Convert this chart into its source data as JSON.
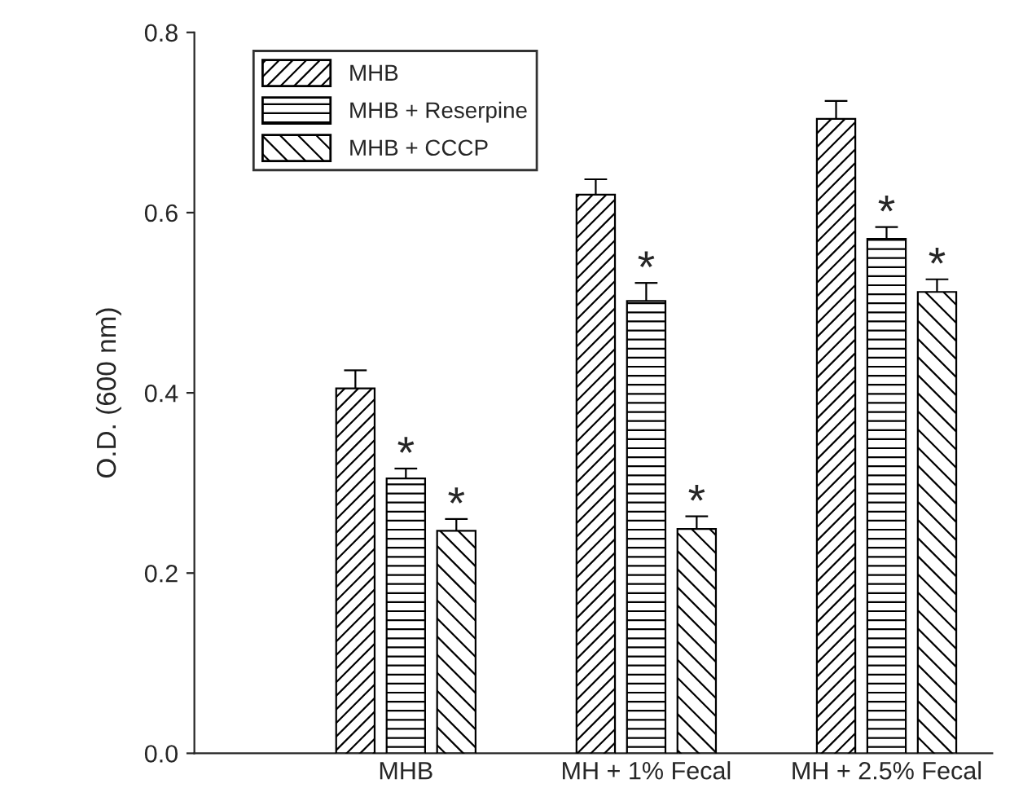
{
  "chart_data": {
    "type": "bar",
    "ylabel": "O.D. (600 nm)",
    "categories": [
      "MHB",
      "MH + 1% Fecal",
      "MH + 2.5% Fecal"
    ],
    "series": [
      {
        "name": "MHB",
        "color": "#000000",
        "values": [
          0.405,
          0.62,
          0.704
        ],
        "errors": [
          0.02,
          0.017,
          0.02
        ]
      },
      {
        "name": "MHB + Reserpine",
        "color": "#000000",
        "values": [
          0.305,
          0.502,
          0.571
        ],
        "errors": [
          0.011,
          0.02,
          0.013
        ]
      },
      {
        "name": "MHB + CCCP",
        "color": "#000000",
        "values": [
          0.247,
          0.249,
          0.512
        ],
        "errors": [
          0.013,
          0.014,
          0.014
        ]
      }
    ],
    "annotations": [
      {
        "text": "*",
        "x": "MHB",
        "y": 0.305
      },
      "*",
      {
        "text": "*",
        "x": "MH + 1% Fecal",
        "y": 0.502
      },
      "*",
      {
        "text": "*",
        "x": "MH + 2.5% Fecal",
        "y": 0.571
      },
      "*"
    ],
    "ylim": [
      0,
      0.8
    ],
    "yticks": [
      {
        "value": 0,
        "label": "0.0"
      },
      0.2,
      0.4,
      0.6,
      0.8
    ],
    "grid": false,
    "legend": "top left"
  }
}
